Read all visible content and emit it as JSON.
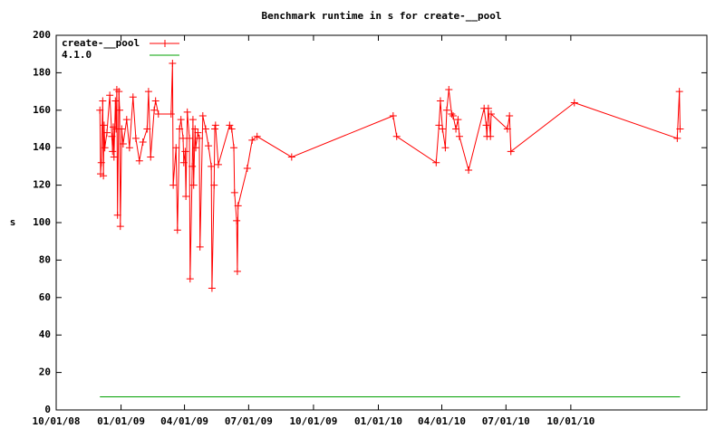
{
  "chart_data": {
    "type": "line",
    "title": "Benchmark runtime in s for create-__pool",
    "y_label": "s",
    "xlim": [
      "10/01/08",
      "04/12/11"
    ],
    "xticks": [
      "10/01/08",
      "01/01/09",
      "04/01/09",
      "07/01/09",
      "10/01/09",
      "01/01/10",
      "04/01/10",
      "07/01/10",
      "10/01/10"
    ],
    "ylim": [
      0,
      200
    ],
    "yticks": [
      0,
      20,
      40,
      60,
      80,
      100,
      120,
      140,
      160,
      180,
      200
    ],
    "series": [
      {
        "name": "create-__pool",
        "color": "#ff0000",
        "x": [
          "12/02/08",
          "12/03/08",
          "12/04/08",
          "12/06/08",
          "12/07/08",
          "12/08/08",
          "12/09/08",
          "12/12/08",
          "12/16/08",
          "12/19/08",
          "12/20/08",
          "12/21/08",
          "12/22/08",
          "12/24/08",
          "12/25/08",
          "12/26/08",
          "12/27/08",
          "12/29/08",
          "12/30/08",
          "12/31/08",
          "01/02/09",
          "01/04/09",
          "01/09/09",
          "01/13/09",
          "01/18/09",
          "01/22/09",
          "01/27/09",
          "02/01/09",
          "02/07/09",
          "02/09/09",
          "02/12/09",
          "02/17/09",
          "02/19/09",
          "02/23/09",
          "03/13/09",
          "03/15/09",
          "03/16/09",
          "03/20/09",
          "03/22/09",
          "03/25/09",
          "03/27/09",
          "03/30/09",
          "03/31/09",
          "04/02/09",
          "04/03/09",
          "04/05/09",
          "04/08/09",
          "04/09/09",
          "04/12/09",
          "04/13/09",
          "04/14/09",
          "04/16/09",
          "04/17/09",
          "04/20/09",
          "04/22/09",
          "04/23/09",
          "04/27/09",
          "05/01/09",
          "05/05/09",
          "05/09/09",
          "05/10/09",
          "05/13/09",
          "05/14/09",
          "05/15/09",
          "05/19/09",
          "06/04/09",
          "06/07/09",
          "06/10/09",
          "06/11/09",
          "06/14/09",
          "06/15/09",
          "06/16/09",
          "06/29/09",
          "07/06/09",
          "07/13/09",
          "08/31/09",
          "01/22/10",
          "01/27/10",
          "03/24/10",
          "03/28/10",
          "03/30/10",
          "04/02/10",
          "04/06/10",
          "04/08/10",
          "04/11/10",
          "04/15/10",
          "04/17/10",
          "04/21/10",
          "04/24/10",
          "04/26/10",
          "05/09/10",
          "05/31/10",
          "06/03/10",
          "06/04/10",
          "06/06/10",
          "06/09/10",
          "06/10/10",
          "07/03/10",
          "07/06/10",
          "07/08/10",
          "10/06/10",
          "03/01/11",
          "03/04/11",
          "03/05/11"
        ],
        "values": [
          160,
          126,
          132,
          165,
          125,
          152,
          140,
          148,
          168,
          146,
          138,
          151,
          135,
          165,
          150,
          171,
          104,
          170,
          160,
          98,
          150,
          142,
          155,
          140,
          167,
          145,
          133,
          143,
          150,
          170,
          135,
          160,
          165,
          158,
          158,
          185,
          120,
          140,
          96,
          150,
          155,
          145,
          132,
          138,
          114,
          159,
          145,
          70,
          130,
          155,
          120,
          150,
          140,
          148,
          145,
          87,
          157,
          150,
          141,
          130,
          65,
          120,
          150,
          152,
          131,
          152,
          150,
          140,
          116,
          101,
          74,
          109,
          129,
          144,
          146,
          135,
          157,
          146,
          132,
          152,
          165,
          150,
          140,
          160,
          171,
          158,
          157,
          150,
          155,
          146,
          128,
          161,
          152,
          146,
          161,
          146,
          158,
          150,
          157,
          138,
          164,
          145,
          170,
          150
        ]
      },
      {
        "name": "4.1.0",
        "color": "#00a000",
        "x": [
          "12/02/08",
          "03/05/11"
        ],
        "values": [
          7,
          7
        ]
      }
    ]
  }
}
